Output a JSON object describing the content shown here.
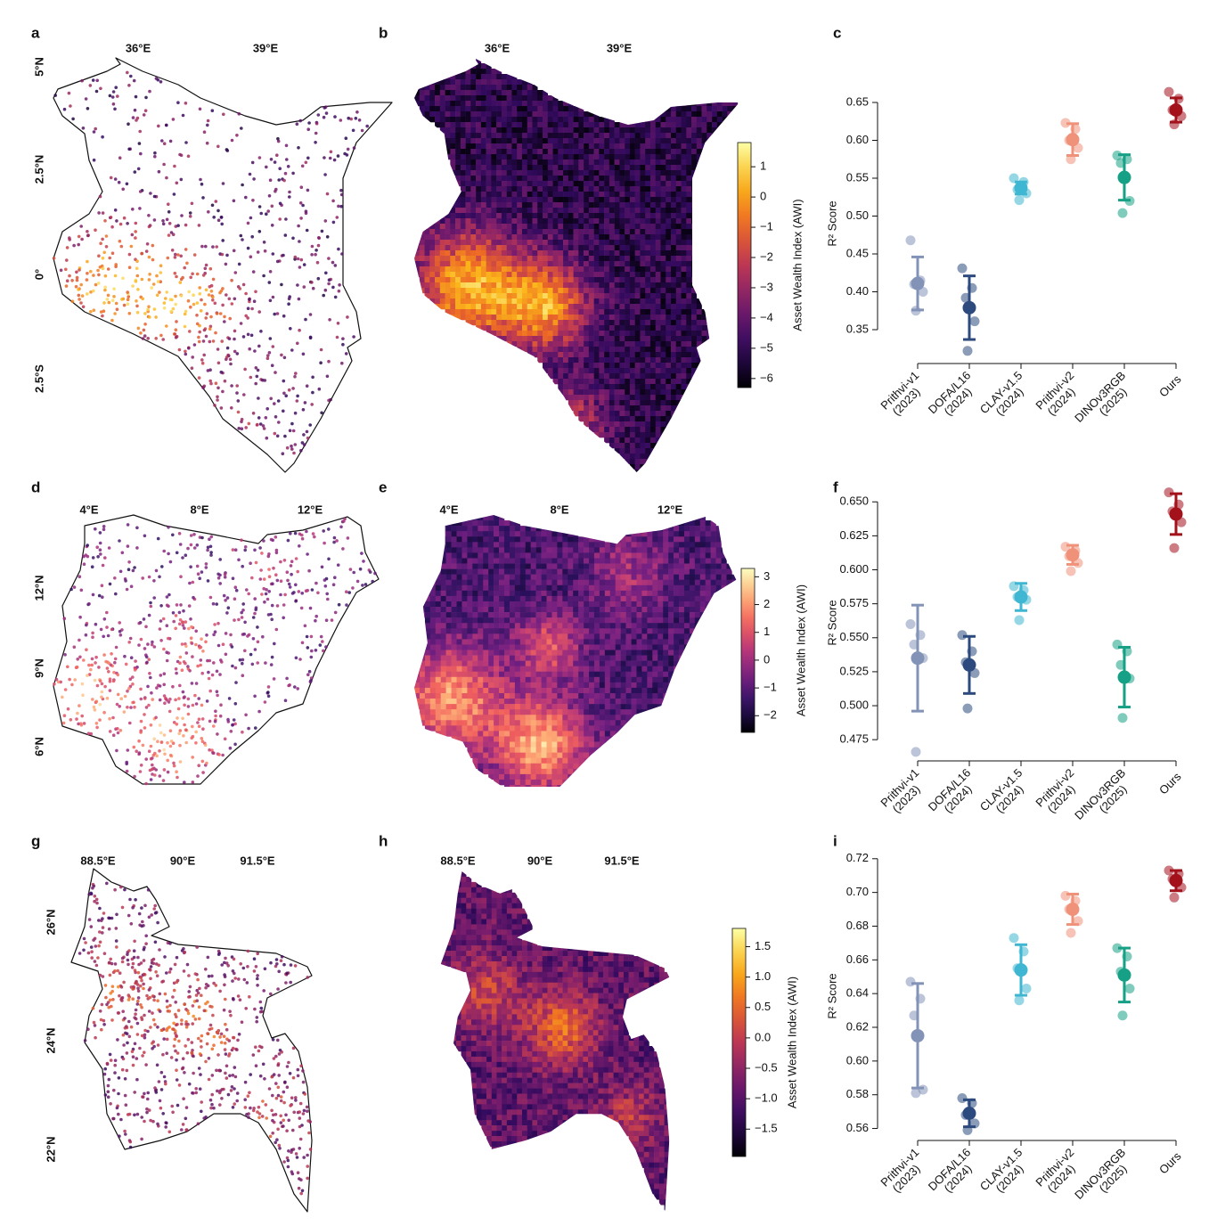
{
  "maps": [
    {
      "panel": "a",
      "lon_labels": [
        "36°E",
        "39°E"
      ],
      "lat_labels": [
        "5°N",
        "2.5°N",
        "0°",
        "2.5°S"
      ]
    },
    {
      "panel": "b",
      "lon_labels": [
        "36°E",
        "39°E"
      ],
      "colorbar": {
        "label": "Asset Wealth Index (AWI)",
        "colormap": "inferno",
        "lim": [
          -6.3,
          1.8
        ],
        "ticks": [
          1,
          0,
          {
            "value": -1,
            "label": "−1"
          },
          {
            "value": -2,
            "label": "−2"
          },
          {
            "value": -3,
            "label": "−3"
          },
          {
            "value": -4,
            "label": "−4"
          },
          {
            "value": -5,
            "label": "−5"
          },
          {
            "value": -6,
            "label": "−6"
          }
        ]
      }
    },
    {
      "panel": "d",
      "lon_labels": [
        "4°E",
        "8°E",
        "12°E"
      ],
      "lat_labels": [
        "12°N",
        "9°N",
        "6°N"
      ]
    },
    {
      "panel": "e",
      "lon_labels": [
        "4°E",
        "8°E",
        "12°E"
      ],
      "colorbar": {
        "label": "Asset Wealth Index (AWI)",
        "colormap": "magma",
        "lim": [
          -2.6,
          3.3
        ],
        "ticks": [
          3,
          2,
          1,
          0,
          {
            "value": -1,
            "label": "−1"
          },
          {
            "value": -2,
            "label": "−2"
          }
        ]
      }
    },
    {
      "panel": "g",
      "lon_labels": [
        "88.5°E",
        "90°E",
        "91.5°E"
      ],
      "lat_labels": [
        "26°N",
        "24°N",
        "22°N"
      ]
    },
    {
      "panel": "h",
      "lon_labels": [
        "88.5°E",
        "90°E",
        "91.5°E"
      ],
      "colorbar": {
        "label": "Asset Wealth Index (AWI)",
        "colormap": "inferno",
        "lim": [
          -1.95,
          1.8
        ],
        "ticks": [
          1.5,
          {
            "value": 1,
            "label": "1.0"
          },
          0.5,
          {
            "value": 0,
            "label": "0.0"
          },
          {
            "value": -0.5,
            "label": "−0.5"
          },
          {
            "value": -1,
            "label": "−1.0"
          },
          {
            "value": -1.5,
            "label": "−1.5"
          }
        ]
      }
    }
  ],
  "chart_data": [
    {
      "type": "dot_errorbar",
      "panel": "c",
      "ylabel": "R² Score",
      "categories": [
        "Prithvi-v1",
        "DOFA/L16",
        "CLAY-v1.5",
        "Prithvi-v2",
        "DINOv3RGB",
        "Ours"
      ],
      "years": [
        "(2023)",
        "(2024)",
        "(2024)",
        "(2024)",
        "(2025)",
        null
      ],
      "colors": [
        "#8393b8",
        "#2c4a7e",
        "#3fb6d2",
        "#f0917a",
        "#16a085",
        "#a3111b"
      ],
      "means": [
        0.411,
        0.379,
        0.537,
        0.601,
        0.551,
        0.64
      ],
      "errors": [
        0.035,
        0.042,
        0.008,
        0.021,
        0.03,
        0.016
      ],
      "points": [
        [
          0.468,
          0.415,
          0.41,
          0.4,
          0.375
        ],
        [
          0.431,
          0.405,
          0.392,
          0.361,
          0.322
        ],
        [
          0.55,
          0.545,
          0.535,
          0.53,
          0.521
        ],
        [
          0.623,
          0.615,
          0.6,
          0.59,
          0.575
        ],
        [
          0.58,
          0.575,
          0.57,
          0.52,
          0.504
        ],
        [
          0.664,
          0.655,
          0.64,
          0.632,
          0.621
        ]
      ],
      "ylim": [
        0.31,
        0.67
      ],
      "yticks": [
        0.35,
        {
          "value": 0.4,
          "label": "0.40"
        },
        0.45,
        {
          "value": 0.5,
          "label": "0.50"
        },
        0.55,
        {
          "value": 0.6,
          "label": "0.60"
        },
        0.65
      ]
    },
    {
      "type": "dot_errorbar",
      "panel": "f",
      "ylabel": "R² Score",
      "categories": [
        "Prithvi-v1",
        "DOFA/L16",
        "CLAY-v1.5",
        "Prithvi-v2",
        "DINOv3RGB",
        "Ours"
      ],
      "years": [
        "(2023)",
        "(2024)",
        "(2024)",
        "(2024)",
        "(2025)",
        null
      ],
      "colors": [
        "#8393b8",
        "#2c4a7e",
        "#3fb6d2",
        "#f0917a",
        "#16a085",
        "#a3111b"
      ],
      "means": [
        0.535,
        0.53,
        0.58,
        0.611,
        0.521,
        0.641
      ],
      "errors": [
        0.039,
        0.021,
        0.01,
        0.007,
        0.022,
        0.015
      ],
      "points": [
        [
          0.56,
          0.552,
          0.545,
          0.535,
          0.466
        ],
        [
          0.552,
          0.54,
          0.532,
          0.524,
          0.498
        ],
        [
          0.588,
          0.585,
          0.58,
          0.578,
          0.563
        ],
        [
          0.617,
          0.614,
          0.61,
          0.605,
          0.599
        ],
        [
          0.545,
          0.54,
          0.53,
          0.52,
          0.491
        ],
        [
          0.657,
          0.648,
          0.643,
          0.635,
          0.616
        ]
      ],
      "ylim": [
        0.462,
        0.66
      ],
      "yticks": [
        0.475,
        {
          "value": 0.5,
          "label": "0.500"
        },
        0.525,
        {
          "value": 0.55,
          "label": "0.550"
        },
        0.575,
        {
          "value": 0.6,
          "label": "0.600"
        },
        0.625,
        {
          "value": 0.65,
          "label": "0.650"
        }
      ]
    },
    {
      "type": "dot_errorbar",
      "panel": "i",
      "ylabel": "R² Score",
      "categories": [
        "Prithvi-v1",
        "DOFA/L16",
        "CLAY-v1.5",
        "Prithvi-v2",
        "DINOv3RGB",
        "Ours"
      ],
      "years": [
        "(2023)",
        "(2024)",
        "(2024)",
        "(2024)",
        "(2025)",
        null
      ],
      "colors": [
        "#8393b8",
        "#2c4a7e",
        "#3fb6d2",
        "#f0917a",
        "#16a085",
        "#a3111b"
      ],
      "means": [
        0.615,
        0.569,
        0.654,
        0.69,
        0.651,
        0.707
      ],
      "errors": [
        0.031,
        0.008,
        0.015,
        0.009,
        0.016,
        0.006
      ],
      "points": [
        [
          0.647,
          0.637,
          0.627,
          0.583,
          0.581
        ],
        [
          0.578,
          0.575,
          0.568,
          0.563,
          0.559
        ],
        [
          0.673,
          0.665,
          0.655,
          0.643,
          0.636
        ],
        [
          0.698,
          0.695,
          0.69,
          0.683,
          0.676
        ],
        [
          0.667,
          0.662,
          0.653,
          0.643,
          0.627
        ],
        [
          0.713,
          0.711,
          0.708,
          0.703,
          0.697
        ]
      ],
      "ylim": [
        0.555,
        0.722
      ],
      "yticks": [
        0.56,
        0.58,
        {
          "value": 0.6,
          "label": "0.60"
        },
        0.62,
        0.64,
        0.66,
        0.68,
        {
          "value": 0.7,
          "label": "0.70"
        },
        0.72
      ]
    }
  ]
}
